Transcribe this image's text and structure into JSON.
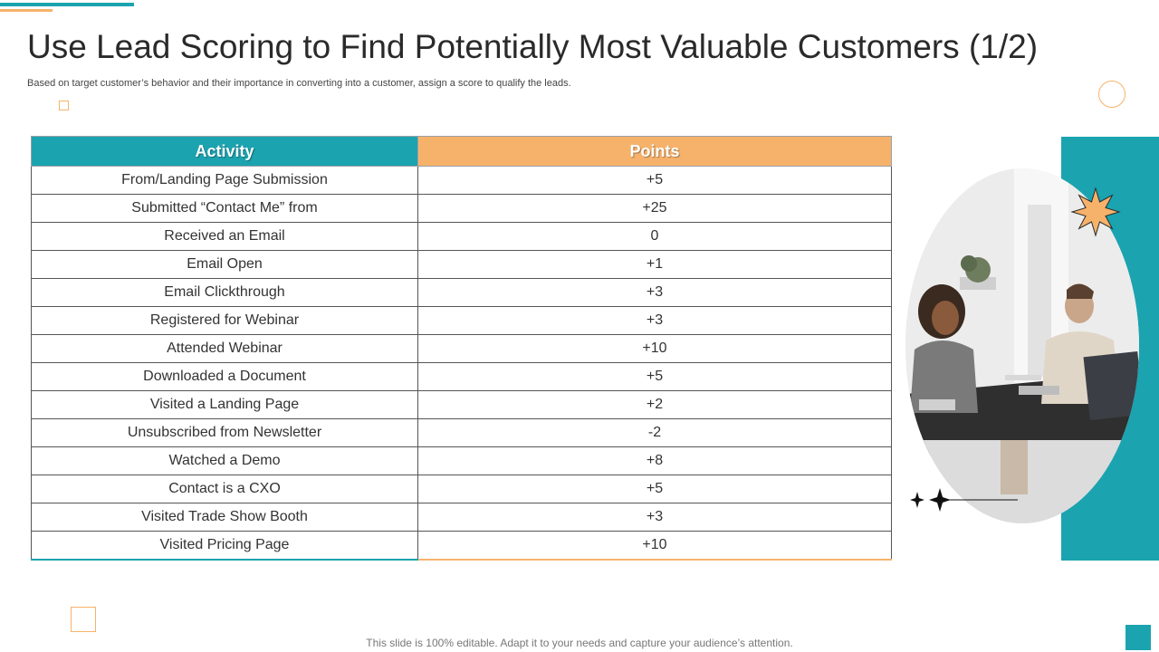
{
  "slide": {
    "title": "Use Lead Scoring to Find Potentially Most Valuable Customers (1/2)",
    "subtitle": "Based on target customer’s behavior and their importance in converting into a customer, assign a score to qualify the leads.",
    "footer": "This slide is 100% editable. Adapt it to your needs and capture your audience’s attention."
  },
  "table": {
    "headers": {
      "activity": "Activity",
      "points": "Points"
    },
    "rows": [
      {
        "activity": "From/Landing Page Submission",
        "points": "+5"
      },
      {
        "activity": "Submitted “Contact Me” from",
        "points": "+25"
      },
      {
        "activity": "Received an Email",
        "points": "0"
      },
      {
        "activity": "Email Open",
        "points": "+1"
      },
      {
        "activity": "Email Clickthrough",
        "points": "+3"
      },
      {
        "activity": "Registered for Webinar",
        "points": "+3"
      },
      {
        "activity": "Attended Webinar",
        "points": "+10"
      },
      {
        "activity": "Downloaded a Document",
        "points": "+5"
      },
      {
        "activity": "Visited a Landing Page",
        "points": "+2"
      },
      {
        "activity": "Unsubscribed from Newsletter",
        "points": "-2"
      },
      {
        "activity": "Watched a Demo",
        "points": "+8"
      },
      {
        "activity": "Contact is a CXO",
        "points": "+5"
      },
      {
        "activity": "Visited Trade Show Booth",
        "points": "+3"
      },
      {
        "activity": "Visited Pricing Page",
        "points": "+10"
      }
    ]
  },
  "colors": {
    "accent_teal": "#1ba3b0",
    "accent_orange": "#f6b26b",
    "text_dark": "#2a2a2a"
  },
  "icons": {
    "starburst": "orange-starburst-icon",
    "sparkles": "sparkle-stars-icon"
  }
}
